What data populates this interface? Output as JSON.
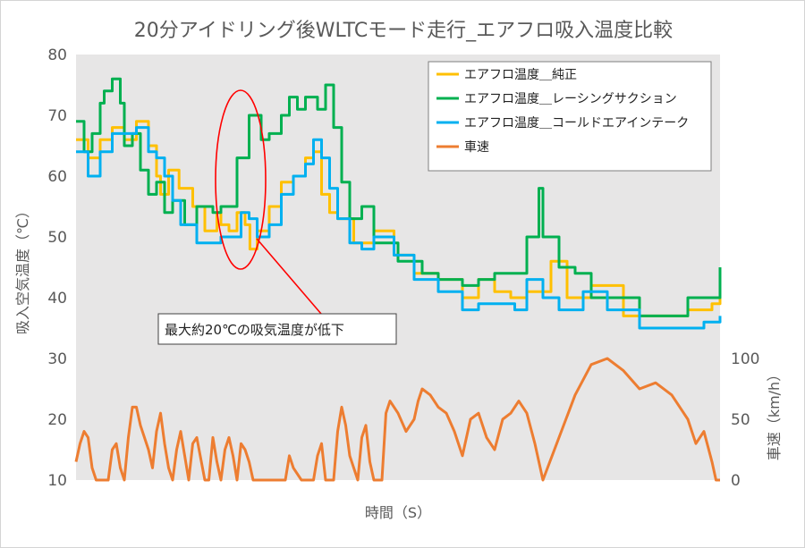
{
  "chart_data": {
    "type": "line",
    "title": "20分アイドリング後WLTCモード走行_エアフロ吸入温度比較",
    "xlabel": "時間（S）",
    "ylabel": "吸入空気温度（℃）",
    "y2label": "車速（km/h）",
    "ylim": [
      10,
      80
    ],
    "y_ticks": [
      "10",
      "20",
      "30",
      "40",
      "50",
      "60",
      "70",
      "80"
    ],
    "y2lim": [
      0,
      350
    ],
    "y2_ticks": [
      "0",
      "50",
      "100"
    ],
    "x_ticks_shown": false,
    "grid": false,
    "legend_position": "top-right",
    "annotation": "最大約20℃の吸気温度が低下",
    "series": [
      {
        "name": "エアフロ温度＿純正",
        "axis": "left",
        "color": "#FFC000",
        "x": [
          0,
          15,
          30,
          45,
          60,
          75,
          90,
          100,
          105,
          115,
          128,
          145,
          160,
          175,
          180,
          190,
          200,
          210,
          216,
          225,
          240,
          255,
          270,
          285,
          295,
          305,
          315,
          325,
          345,
          370,
          395,
          420,
          450,
          480,
          500,
          520,
          540,
          560,
          590,
          610,
          640,
          680,
          720,
          760,
          790,
          800
        ],
        "values": [
          66,
          63,
          66,
          68,
          66,
          69,
          65,
          60,
          57,
          61,
          58,
          55,
          51,
          54,
          52,
          51,
          54,
          52,
          48,
          51,
          55,
          59,
          60,
          63,
          64,
          57,
          54,
          53,
          49,
          51,
          47,
          44,
          43,
          40,
          43,
          41,
          40,
          41,
          46,
          40,
          42,
          37,
          37,
          38,
          39,
          42
        ]
      },
      {
        "name": "エアフロ温度＿レーシングサクション",
        "axis": "left",
        "color": "#00B050",
        "x": [
          0,
          10,
          20,
          30,
          35,
          45,
          55,
          60,
          70,
          80,
          90,
          100,
          110,
          120,
          135,
          150,
          170,
          180,
          200,
          215,
          230,
          240,
          255,
          265,
          275,
          285,
          300,
          310,
          320,
          330,
          340,
          355,
          370,
          400,
          430,
          450,
          480,
          500,
          520,
          545,
          560,
          575,
          580,
          600,
          620,
          640,
          700,
          760,
          800
        ],
        "values": [
          69,
          64,
          67,
          72,
          74,
          76,
          72,
          65,
          67,
          61,
          57,
          59,
          54,
          56,
          52,
          55,
          54,
          55,
          63,
          70,
          66,
          67,
          70,
          73,
          71,
          73,
          71,
          75,
          68,
          59,
          53,
          55,
          49,
          46,
          44,
          43,
          42,
          43,
          44,
          44,
          50,
          58,
          50,
          45,
          44,
          40,
          37,
          40,
          45
        ]
      },
      {
        "name": "エアフロ温度＿コールドエアインテーク",
        "axis": "left",
        "color": "#00B0F0",
        "x": [
          0,
          15,
          30,
          45,
          60,
          75,
          90,
          100,
          110,
          120,
          130,
          150,
          170,
          180,
          190,
          205,
          215,
          225,
          240,
          255,
          270,
          285,
          295,
          305,
          315,
          325,
          340,
          355,
          370,
          395,
          420,
          450,
          480,
          500,
          520,
          545,
          560,
          580,
          600,
          630,
          660,
          700,
          750,
          780,
          800
        ],
        "values": [
          64,
          60,
          64,
          67,
          67,
          68,
          64,
          63,
          60,
          56,
          52,
          49,
          49,
          50,
          50,
          54,
          53,
          50,
          52,
          57,
          60,
          62,
          66,
          63,
          58,
          53,
          49,
          48,
          50,
          47,
          43,
          41,
          38,
          39,
          39,
          38,
          43,
          40,
          38,
          41,
          38,
          35,
          35,
          36,
          37
        ]
      },
      {
        "name": "車速",
        "axis": "right",
        "color": "#ED7D31",
        "x": [
          0,
          5,
          10,
          15,
          20,
          25,
          30,
          40,
          45,
          50,
          55,
          60,
          65,
          70,
          75,
          80,
          90,
          95,
          100,
          105,
          110,
          115,
          120,
          125,
          130,
          135,
          140,
          145,
          150,
          160,
          165,
          170,
          175,
          180,
          185,
          190,
          195,
          200,
          205,
          210,
          215,
          220,
          225,
          230,
          235,
          240,
          245,
          250,
          255,
          260,
          265,
          270,
          280,
          285,
          290,
          295,
          300,
          305,
          310,
          320,
          325,
          330,
          335,
          340,
          350,
          355,
          360,
          365,
          370,
          380,
          385,
          390,
          400,
          410,
          420,
          425,
          430,
          440,
          450,
          460,
          470,
          480,
          490,
          500,
          510,
          520,
          530,
          540,
          550,
          560,
          570,
          580,
          600,
          620,
          640,
          660,
          680,
          700,
          720,
          740,
          760,
          770,
          780,
          790,
          795,
          800
        ],
        "values": [
          15,
          30,
          40,
          35,
          10,
          0,
          0,
          0,
          25,
          30,
          10,
          0,
          35,
          60,
          60,
          45,
          25,
          10,
          40,
          55,
          30,
          10,
          0,
          25,
          40,
          20,
          0,
          30,
          35,
          0,
          0,
          35,
          15,
          0,
          25,
          35,
          20,
          0,
          30,
          25,
          15,
          0,
          0,
          0,
          0,
          0,
          0,
          0,
          0,
          0,
          20,
          10,
          0,
          0,
          0,
          0,
          20,
          30,
          0,
          0,
          40,
          60,
          45,
          20,
          0,
          35,
          45,
          15,
          0,
          0,
          55,
          65,
          55,
          40,
          50,
          65,
          75,
          70,
          60,
          55,
          40,
          20,
          50,
          55,
          35,
          25,
          50,
          55,
          65,
          55,
          30,
          0,
          35,
          70,
          95,
          100,
          90,
          75,
          80,
          70,
          50,
          30,
          40,
          15,
          0,
          0
        ]
      }
    ]
  }
}
